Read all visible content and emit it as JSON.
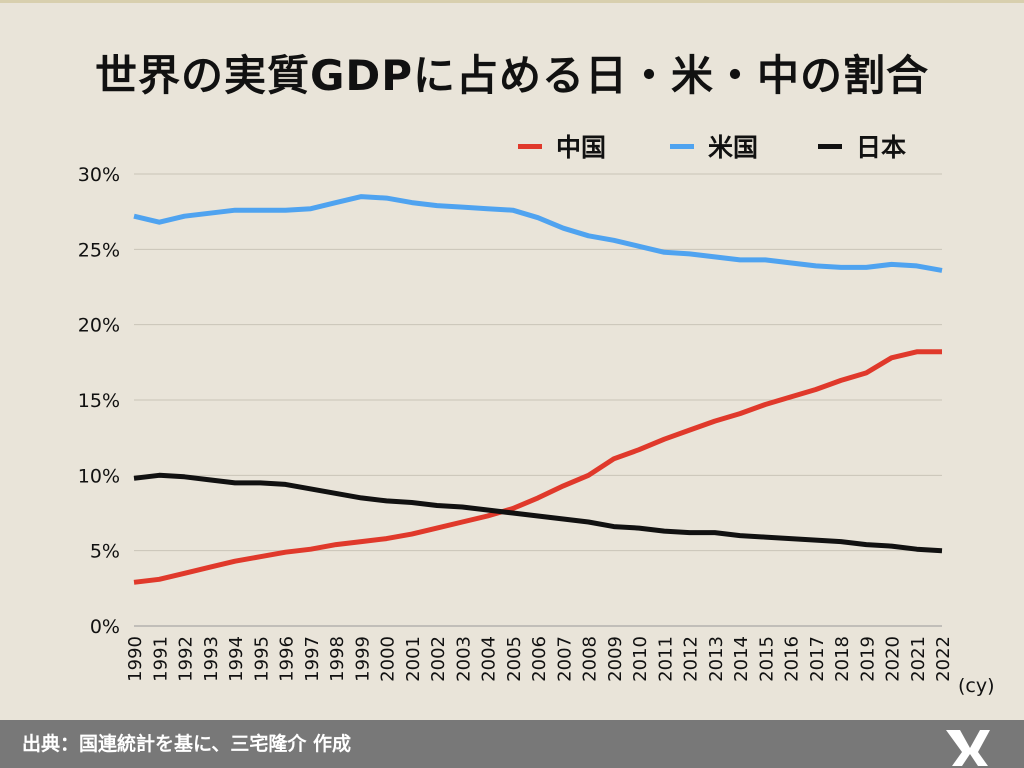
{
  "title": "世界の実質GDPに占める日・米・中の割合",
  "legend": [
    {
      "name": "中国",
      "color": "#e0392b"
    },
    {
      "name": "米国",
      "color": "#4fa3f0"
    },
    {
      "name": "日本",
      "color": "#111111"
    }
  ],
  "footer": {
    "source_text": "出典：国連統計を基に、三宅隆介 作成",
    "logo_icon": "mr-logo-icon"
  },
  "chart_data": {
    "type": "line",
    "title": "世界の実質GDPに占める日・米・中の割合",
    "x_unit_label": "(cy)",
    "y_ticks": [
      "0%",
      "5%",
      "10%",
      "15%",
      "20%",
      "25%",
      "30%"
    ],
    "ylim": [
      0,
      30
    ],
    "y_unit": "%",
    "grid": true,
    "legend_position": "top-right",
    "categories": [
      "1990",
      "1991",
      "1992",
      "1993",
      "1994",
      "1995",
      "1996",
      "1997",
      "1998",
      "1999",
      "2000",
      "2001",
      "2002",
      "2003",
      "2004",
      "2005",
      "2006",
      "2007",
      "2008",
      "2009",
      "2010",
      "2011",
      "2012",
      "2013",
      "2014",
      "2015",
      "2016",
      "2017",
      "2018",
      "2019",
      "2020",
      "2021",
      "2022"
    ],
    "series": [
      {
        "name": "中国",
        "color": "#e0392b",
        "values": [
          2.9,
          3.1,
          3.5,
          3.9,
          4.3,
          4.6,
          4.9,
          5.1,
          5.4,
          5.6,
          5.8,
          6.1,
          6.5,
          6.9,
          7.3,
          7.8,
          8.5,
          9.3,
          10.0,
          11.1,
          11.7,
          12.4,
          13.0,
          13.6,
          14.1,
          14.7,
          15.2,
          15.7,
          16.3,
          16.8,
          17.8,
          18.2,
          18.2
        ]
      },
      {
        "name": "米国",
        "color": "#4fa3f0",
        "values": [
          27.2,
          26.8,
          27.2,
          27.4,
          27.6,
          27.6,
          27.6,
          27.7,
          28.1,
          28.5,
          28.4,
          28.1,
          27.9,
          27.8,
          27.7,
          27.6,
          27.1,
          26.4,
          25.9,
          25.6,
          25.2,
          24.8,
          24.7,
          24.5,
          24.3,
          24.3,
          24.1,
          23.9,
          23.8,
          23.8,
          24.0,
          23.9,
          23.6
        ]
      },
      {
        "name": "日本",
        "color": "#111111",
        "values": [
          9.8,
          10.0,
          9.9,
          9.7,
          9.5,
          9.5,
          9.4,
          9.1,
          8.8,
          8.5,
          8.3,
          8.2,
          8.0,
          7.9,
          7.7,
          7.5,
          7.3,
          7.1,
          6.9,
          6.6,
          6.5,
          6.3,
          6.2,
          6.2,
          6.0,
          5.9,
          5.8,
          5.7,
          5.6,
          5.4,
          5.3,
          5.1,
          5.0
        ]
      }
    ]
  }
}
